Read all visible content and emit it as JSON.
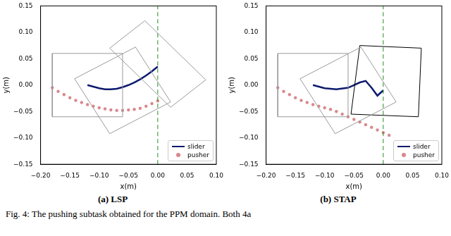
{
  "chart_data": [
    {
      "type": "scatter",
      "subtitle": "(a) LSP",
      "x_label": "x(m)",
      "y_label": "y(m)",
      "xlim": [
        -0.2,
        0.1
      ],
      "xticks": [
        {
          "value": -0.2,
          "label": "−0.20"
        },
        {
          "value": -0.15,
          "label": "−0.15"
        },
        {
          "value": -0.1,
          "label": "−0.10"
        },
        {
          "value": -0.05,
          "label": "−0.05"
        },
        {
          "value": 0,
          "label": "0.00"
        },
        {
          "value": 0.05,
          "label": "0.05"
        },
        {
          "value": 0.1,
          "label": "0.10"
        }
      ],
      "ylim": [
        -0.15,
        0.15
      ],
      "yticks": [
        {
          "value": -0.15,
          "label": "−0.15"
        },
        {
          "value": -0.1,
          "label": "−0.10"
        },
        {
          "value": -0.05,
          "label": "−0.05"
        },
        {
          "value": 0,
          "label": "0.00"
        },
        {
          "value": 0.05,
          "label": "0.05"
        },
        {
          "value": 0.1,
          "label": "0.10"
        },
        {
          "value": 0.15,
          "label": "0.15"
        }
      ],
      "grid": false,
      "legend": "lower right",
      "series": [
        {
          "type": "line",
          "color": "#9a9a9a",
          "line_style": "solid",
          "x": [
            -0.18,
            -0.06,
            -0.06,
            -0.18,
            -0.18
          ],
          "values": [
            -0.06,
            -0.06,
            0.06,
            0.06,
            -0.06
          ]
        },
        {
          "type": "line",
          "color": "#9a9a9a",
          "line_style": "solid",
          "x": [
            -0.082,
            0.022,
            -0.038,
            -0.142,
            -0.082
          ],
          "values": [
            -0.092,
            -0.032,
            0.072,
            0.012,
            -0.092
          ]
        },
        {
          "type": "line",
          "color": "#9a9a9a",
          "line_style": "solid",
          "x": [
            0.022,
            0.082,
            -0.022,
            -0.082,
            0.022
          ],
          "values": [
            -0.042,
            0.01,
            0.122,
            0.07,
            -0.042
          ]
        },
        {
          "type": "line",
          "color": "#228b22",
          "line_style": "dashed",
          "x": [
            0,
            0
          ],
          "values": [
            -0.15,
            0.15
          ]
        },
        {
          "name": "slider",
          "type": "line",
          "color": "#0d1a6e",
          "marker": "line",
          "line_style": "solid",
          "x": [
            -0.12,
            -0.11,
            -0.1,
            -0.09,
            -0.08,
            -0.07,
            -0.06,
            -0.05,
            -0.04,
            -0.03,
            -0.02,
            -0.01,
            0.0
          ],
          "values": [
            0.0,
            -0.003,
            -0.006,
            -0.008,
            -0.008,
            -0.007,
            -0.004,
            0.0,
            0.005,
            0.011,
            0.018,
            0.026,
            0.035
          ]
        },
        {
          "name": "pusher",
          "type": "scatter",
          "color": "#d9888c",
          "marker": "circle",
          "x": [
            -0.18,
            -0.17,
            -0.16,
            -0.15,
            -0.14,
            -0.13,
            -0.12,
            -0.11,
            -0.1,
            -0.09,
            -0.08,
            -0.07,
            -0.06,
            -0.05,
            -0.04,
            -0.03,
            -0.02,
            -0.01,
            0.0
          ],
          "values": [
            -0.005,
            -0.012,
            -0.018,
            -0.024,
            -0.029,
            -0.033,
            -0.037,
            -0.04,
            -0.043,
            -0.045,
            -0.047,
            -0.048,
            -0.048,
            -0.047,
            -0.046,
            -0.044,
            -0.04,
            -0.035,
            -0.03
          ]
        }
      ]
    },
    {
      "type": "scatter",
      "subtitle": "(b) STAP",
      "x_label": "x(m)",
      "y_label": "y(m)",
      "xlim": [
        -0.2,
        0.1
      ],
      "xticks": [
        {
          "value": -0.2,
          "label": "−0.20"
        },
        {
          "value": -0.15,
          "label": "−0.15"
        },
        {
          "value": -0.1,
          "label": "−0.10"
        },
        {
          "value": -0.05,
          "label": "−0.05"
        },
        {
          "value": 0,
          "label": "0.00"
        },
        {
          "value": 0.05,
          "label": "0.05"
        },
        {
          "value": 0.1,
          "label": "0.10"
        }
      ],
      "ylim": [
        -0.15,
        0.15
      ],
      "yticks": [
        {
          "value": -0.15,
          "label": "−0.15"
        },
        {
          "value": -0.1,
          "label": "−0.10"
        },
        {
          "value": -0.05,
          "label": "−0.05"
        },
        {
          "value": 0,
          "label": "0.00"
        },
        {
          "value": 0.05,
          "label": "0.05"
        },
        {
          "value": 0.1,
          "label": "0.10"
        },
        {
          "value": 0.15,
          "label": "0.15"
        }
      ],
      "grid": false,
      "legend": "lower right",
      "series": [
        {
          "type": "line",
          "color": "#9a9a9a",
          "line_style": "solid",
          "x": [
            -0.18,
            -0.06,
            -0.06,
            -0.18,
            -0.18
          ],
          "values": [
            -0.06,
            -0.06,
            0.06,
            0.06,
            -0.06
          ]
        },
        {
          "type": "line",
          "color": "#9a9a9a",
          "line_style": "solid",
          "x": [
            -0.082,
            0.022,
            -0.038,
            -0.142,
            -0.082
          ],
          "values": [
            -0.092,
            -0.032,
            0.072,
            0.012,
            -0.092
          ]
        },
        {
          "type": "line",
          "color": "#000000",
          "line_style": "solid",
          "x": [
            -0.055,
            0.06,
            0.065,
            -0.04,
            -0.055
          ],
          "values": [
            -0.055,
            -0.06,
            0.07,
            0.075,
            -0.055
          ]
        },
        {
          "type": "line",
          "color": "#228b22",
          "line_style": "dashed",
          "x": [
            0,
            0
          ],
          "values": [
            -0.15,
            0.15
          ]
        },
        {
          "name": "slider",
          "type": "line",
          "color": "#0d1a6e",
          "marker": "line",
          "line_style": "solid",
          "x": [
            -0.12,
            -0.1,
            -0.08,
            -0.06,
            -0.05,
            -0.04,
            -0.03,
            -0.02,
            -0.01,
            0.0
          ],
          "values": [
            0.0,
            -0.006,
            -0.008,
            -0.005,
            0.0,
            0.005,
            0.008,
            -0.005,
            -0.02,
            -0.01
          ]
        },
        {
          "name": "pusher",
          "type": "scatter",
          "color": "#d9888c",
          "marker": "circle",
          "x": [
            -0.18,
            -0.17,
            -0.16,
            -0.15,
            -0.14,
            -0.13,
            -0.12,
            -0.11,
            -0.1,
            -0.09,
            -0.08,
            -0.07,
            -0.06,
            -0.05,
            -0.04,
            -0.03,
            -0.02,
            -0.01,
            0.0,
            0.01
          ],
          "values": [
            -0.005,
            -0.012,
            -0.018,
            -0.024,
            -0.029,
            -0.033,
            -0.037,
            -0.04,
            -0.043,
            -0.046,
            -0.05,
            -0.055,
            -0.06,
            -0.065,
            -0.07,
            -0.075,
            -0.08,
            -0.085,
            -0.09,
            -0.095
          ]
        }
      ]
    }
  ],
  "caption": "Fig. 4: The pushing subtask obtained for the PPM domain. Both 4a"
}
